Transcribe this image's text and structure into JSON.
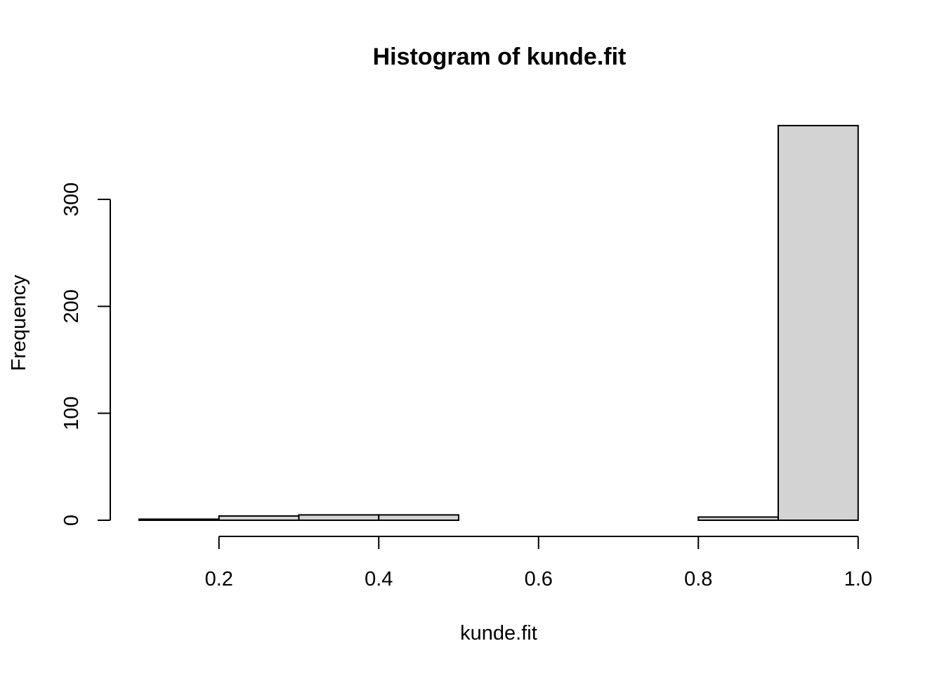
{
  "chart_data": {
    "type": "bar",
    "title": "Histogram of kunde.fit",
    "xlabel": "kunde.fit",
    "ylabel": "Frequency",
    "bins": [
      [
        0.1,
        0.2
      ],
      [
        0.2,
        0.3
      ],
      [
        0.3,
        0.4
      ],
      [
        0.4,
        0.5
      ],
      [
        0.5,
        0.6
      ],
      [
        0.6,
        0.7
      ],
      [
        0.7,
        0.8
      ],
      [
        0.8,
        0.9
      ],
      [
        0.9,
        1.0
      ]
    ],
    "values": [
      1,
      4,
      5,
      5,
      0,
      0,
      0,
      3,
      369
    ],
    "xticks": [
      "0.2",
      "0.4",
      "0.6",
      "0.8",
      "1.0"
    ],
    "xtick_values": [
      0.2,
      0.4,
      0.6,
      0.8,
      1.0
    ],
    "yticks": [
      "0",
      "100",
      "200",
      "300"
    ],
    "ytick_values": [
      0,
      100,
      200,
      300
    ],
    "xlim": [
      0.1,
      1.0
    ],
    "ylim": [
      0,
      369
    ],
    "grid": false,
    "bar_color": "#d3d3d3",
    "edge_color": "#000000"
  }
}
